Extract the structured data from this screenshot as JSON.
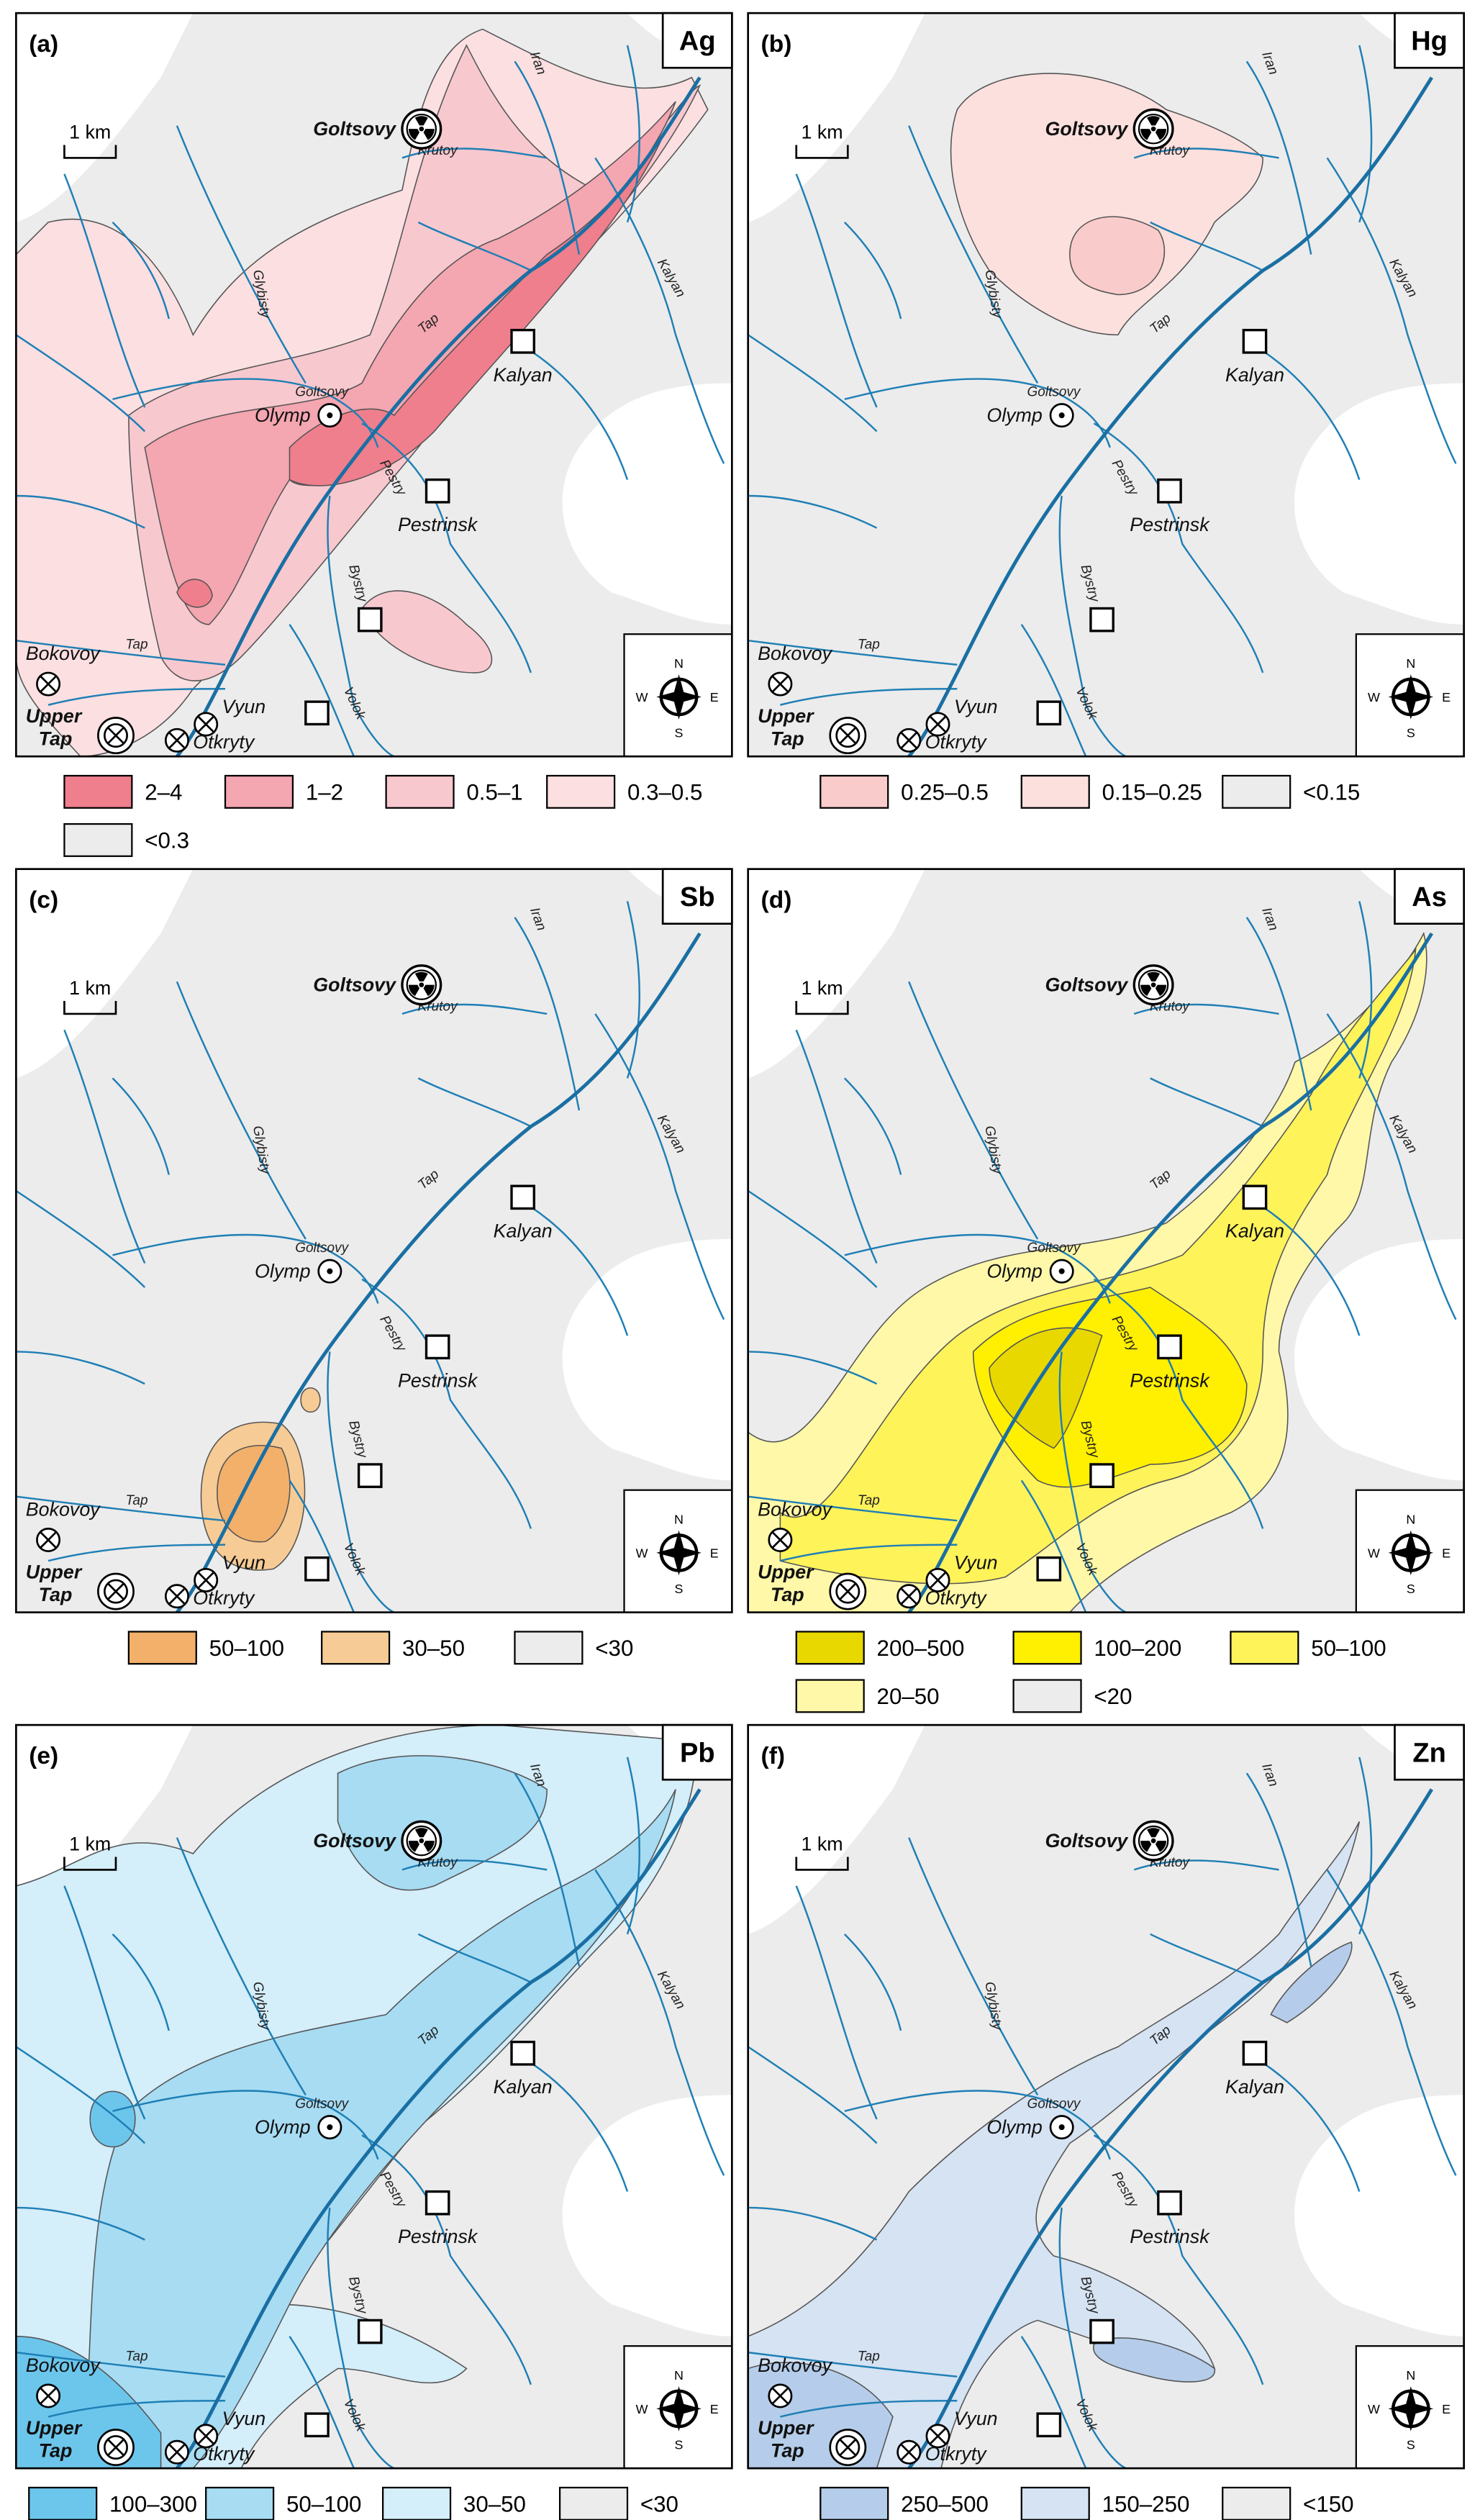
{
  "panels": [
    {
      "label": "(a)",
      "element": "Ag",
      "legend": [
        {
          "label": "2–4",
          "color": "#ef7f8d"
        },
        {
          "label": "1–2",
          "color": "#f4a6b1"
        },
        {
          "label": "0.5–1",
          "color": "#f8c8cf"
        },
        {
          "label": "0.3–0.5",
          "color": "#fbdfe1"
        },
        {
          "label": "<0.3",
          "color": "#ececec"
        }
      ]
    },
    {
      "label": "(b)",
      "element": "Hg",
      "legend": [
        {
          "label": "0.25–0.5",
          "color": "#f9cccb"
        },
        {
          "label": "0.15–0.25",
          "color": "#fce0de"
        },
        {
          "label": "<0.15",
          "color": "#ececec"
        }
      ]
    },
    {
      "label": "(c)",
      "element": "Sb",
      "legend": [
        {
          "label": "50–100",
          "color": "#f2b06b"
        },
        {
          "label": "30–50",
          "color": "#f7cb95"
        },
        {
          "label": "<30",
          "color": "#ececec"
        }
      ]
    },
    {
      "label": "(d)",
      "element": "As",
      "legend": [
        {
          "label": "200–500",
          "color": "#e8d800"
        },
        {
          "label": "100–200",
          "color": "#ffef00"
        },
        {
          "label": "50–100",
          "color": "#fff35a"
        },
        {
          "label": "20–50",
          "color": "#fff8a8"
        },
        {
          "label": "<20",
          "color": "#ececec"
        }
      ]
    },
    {
      "label": "(e)",
      "element": "Pb",
      "legend": [
        {
          "label": "100–300",
          "color": "#6cc6ec"
        },
        {
          "label": "50–100",
          "color": "#a7dcf3"
        },
        {
          "label": "30–50",
          "color": "#d4eefa"
        },
        {
          "label": "<30",
          "color": "#ececec"
        }
      ]
    },
    {
      "label": "(f)",
      "element": "Zn",
      "legend": [
        {
          "label": "250–500",
          "color": "#b5cdea"
        },
        {
          "label": "150–250",
          "color": "#d5e3f3"
        },
        {
          "label": "<150",
          "color": "#ececec"
        }
      ]
    }
  ],
  "places": {
    "goltsovy": "Goltsovy",
    "olymp": "Olymp",
    "kalyan": "Kalyan",
    "pestrinsk": "Pestrinsk",
    "bokovoy": "Bokovoy",
    "upper_tap": [
      "Upper",
      "Tap"
    ],
    "vyun": "Vyun",
    "otkryty": "Otkryty"
  },
  "rivers": {
    "iran": "Iran",
    "krutoy": "Krutoy",
    "kalyan": "Kalyan",
    "glybisty": "Glybisty",
    "goltsovy": "Goltsovy",
    "tap_upper": "Tap",
    "pestry": "Pestry",
    "bystry": "Bystry",
    "tap_lower": "Tap",
    "volok": "Volok"
  },
  "scale": "1 km",
  "compass": {
    "n": "N",
    "s": "S",
    "w": "W",
    "e": "E"
  }
}
